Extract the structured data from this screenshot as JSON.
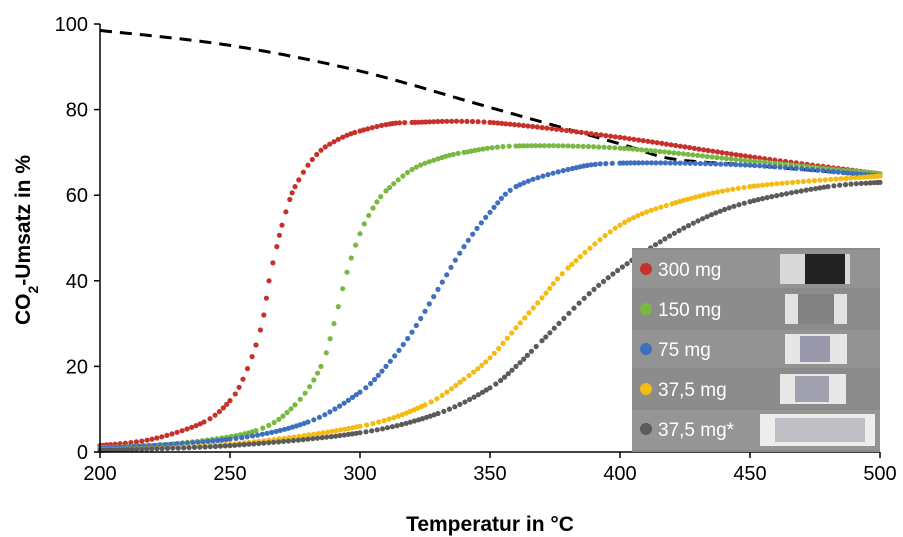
{
  "chart_data": {
    "type": "scatter",
    "title": "",
    "xlabel": "Temperatur in °C",
    "ylabel_main": "CO",
    "ylabel_sub": "2",
    "ylabel_rest": "-Umsatz in %",
    "xlim": [
      200,
      500
    ],
    "ylim": [
      0,
      100
    ],
    "xticks": [
      "200",
      "250",
      "300",
      "350",
      "400",
      "450",
      "500"
    ],
    "yticks": [
      "0",
      "20",
      "40",
      "60",
      "80",
      "100"
    ],
    "grid": false,
    "legend_position": "bottom-right",
    "equilibrium": {
      "style": "dashed",
      "color": "#000000",
      "x": [
        200,
        250,
        300,
        350,
        400,
        420,
        450,
        500
      ],
      "y": [
        98.5,
        95,
        89,
        80.5,
        72,
        68.5,
        67,
        64.5
      ]
    },
    "series": [
      {
        "name": "300 mg",
        "color": "#c8312a",
        "x": [
          200,
          220,
          240,
          250,
          255,
          260,
          263,
          265,
          268,
          270,
          273,
          275,
          280,
          285,
          290,
          295,
          300,
          310,
          320,
          350,
          400,
          450,
          500
        ],
        "y": [
          1.5,
          3,
          7,
          12,
          17,
          25,
          32,
          40,
          48,
          53,
          59,
          62,
          67,
          70.5,
          72.5,
          74,
          75,
          76.5,
          77,
          77,
          73.5,
          69,
          65
        ]
      },
      {
        "name": "150 mg",
        "color": "#78b843",
        "x": [
          200,
          230,
          260,
          275,
          285,
          290,
          295,
          300,
          305,
          310,
          320,
          330,
          340,
          360,
          400,
          450,
          500
        ],
        "y": [
          1,
          2,
          5,
          11,
          20,
          30,
          42,
          51,
          57,
          61,
          66,
          68.5,
          70,
          71.5,
          71,
          68,
          65
        ]
      },
      {
        "name": "75 mg",
        "color": "#3f6fbf",
        "x": [
          200,
          250,
          280,
          300,
          310,
          320,
          330,
          340,
          350,
          360,
          380,
          400,
          450,
          500
        ],
        "y": [
          0.8,
          3,
          7,
          14,
          20,
          28,
          38,
          48,
          56,
          62,
          66,
          67.5,
          67,
          64.5
        ]
      },
      {
        "name": "37,5 mg",
        "color": "#f4bb12",
        "x": [
          200,
          250,
          300,
          325,
          340,
          350,
          360,
          370,
          380,
          400,
          420,
          450,
          500
        ],
        "y": [
          0.5,
          1.8,
          6,
          11,
          17,
          22,
          29,
          36,
          43,
          53,
          58,
          62,
          64.5
        ]
      },
      {
        "name": "37,5 mg*",
        "color": "#5b5b5b",
        "x": [
          200,
          250,
          300,
          330,
          350,
          360,
          370,
          390,
          410,
          430,
          450,
          480,
          500
        ],
        "y": [
          0.4,
          1.5,
          4.5,
          9,
          15,
          20,
          26,
          38,
          47,
          54,
          58.5,
          62,
          63
        ]
      }
    ]
  }
}
